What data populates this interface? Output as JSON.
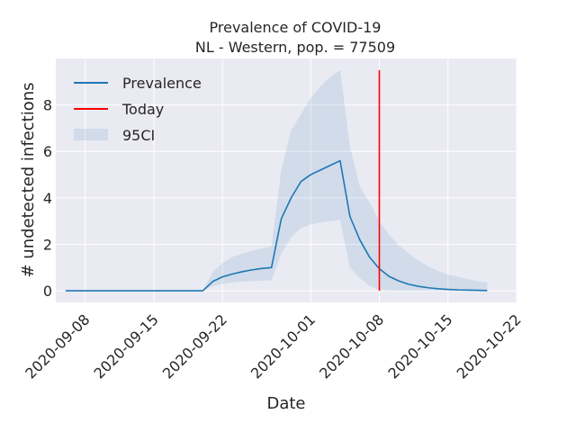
{
  "chart_data": {
    "type": "line",
    "title_line1": "Prevalence of COVID-19",
    "title_line2": "NL - Western, pop. = 77509",
    "xlabel": "Date",
    "ylabel": "# undetected infections",
    "xlim": [
      "2020-09-05",
      "2020-10-22"
    ],
    "ylim": [
      -0.5,
      10.0
    ],
    "x_ticks": [
      "2020-09-08",
      "2020-09-15",
      "2020-09-22",
      "2020-10-01",
      "2020-10-08",
      "2020-10-15",
      "2020-10-22"
    ],
    "y_ticks": [
      0,
      2,
      4,
      6,
      8
    ],
    "y_tick_labels": [
      "0",
      "2",
      "4",
      "6",
      "8"
    ],
    "grid": true,
    "legend_position": "top-left",
    "legend": {
      "prevalence": "Prevalence",
      "today": "Today",
      "ci": "95CI"
    },
    "colors": {
      "prevalence": "#1f77b4",
      "today": "#ff0000",
      "ci": "#1f77b4",
      "plot_background": "#eaeaf2",
      "grid": "#ffffff"
    },
    "today_date": "2020-10-08",
    "series": [
      {
        "name": "Prevalence",
        "x": [
          "2020-09-06",
          "2020-09-07",
          "2020-09-08",
          "2020-09-09",
          "2020-09-10",
          "2020-09-11",
          "2020-09-12",
          "2020-09-13",
          "2020-09-14",
          "2020-09-15",
          "2020-09-16",
          "2020-09-17",
          "2020-09-18",
          "2020-09-19",
          "2020-09-20",
          "2020-09-21",
          "2020-09-22",
          "2020-09-23",
          "2020-09-24",
          "2020-09-25",
          "2020-09-26",
          "2020-09-27",
          "2020-09-28",
          "2020-09-29",
          "2020-09-30",
          "2020-10-01",
          "2020-10-02",
          "2020-10-03",
          "2020-10-04",
          "2020-10-05",
          "2020-10-06",
          "2020-10-07",
          "2020-10-08",
          "2020-10-09",
          "2020-10-10",
          "2020-10-11",
          "2020-10-12",
          "2020-10-13",
          "2020-10-14",
          "2020-10-15",
          "2020-10-16",
          "2020-10-17",
          "2020-10-18",
          "2020-10-19"
        ],
        "values": [
          0,
          0,
          0,
          0,
          0,
          0,
          0,
          0,
          0,
          0,
          0,
          0,
          0,
          0,
          0,
          0.4,
          0.6,
          0.72,
          0.82,
          0.9,
          0.96,
          1.0,
          3.1,
          4.0,
          4.7,
          5.0,
          5.2,
          5.4,
          5.6,
          3.2,
          2.2,
          1.45,
          0.95,
          0.62,
          0.42,
          0.28,
          0.19,
          0.13,
          0.09,
          0.06,
          0.04,
          0.03,
          0.02,
          0.01
        ]
      }
    ],
    "ci_band": {
      "name": "95CI",
      "lower": [
        0,
        0,
        0,
        0,
        0,
        0,
        0,
        0,
        0,
        0,
        0,
        0,
        0,
        0,
        0,
        0.2,
        0.3,
        0.35,
        0.4,
        0.42,
        0.44,
        0.45,
        1.6,
        2.3,
        2.7,
        2.85,
        2.95,
        3.0,
        3.05,
        1.0,
        0.55,
        0.2,
        0.05,
        0.01,
        0,
        0,
        0,
        0,
        0,
        0,
        0,
        0,
        0,
        0
      ],
      "upper": [
        0,
        0,
        0,
        0,
        0,
        0,
        0,
        0,
        0,
        0,
        0,
        0,
        0,
        0,
        0,
        0.8,
        1.2,
        1.45,
        1.6,
        1.72,
        1.82,
        1.9,
        5.2,
        6.9,
        7.6,
        8.3,
        8.8,
        9.2,
        9.5,
        6.2,
        4.5,
        3.8,
        3.0,
        2.4,
        1.95,
        1.6,
        1.3,
        1.05,
        0.85,
        0.7,
        0.6,
        0.5,
        0.42,
        0.35
      ]
    }
  }
}
